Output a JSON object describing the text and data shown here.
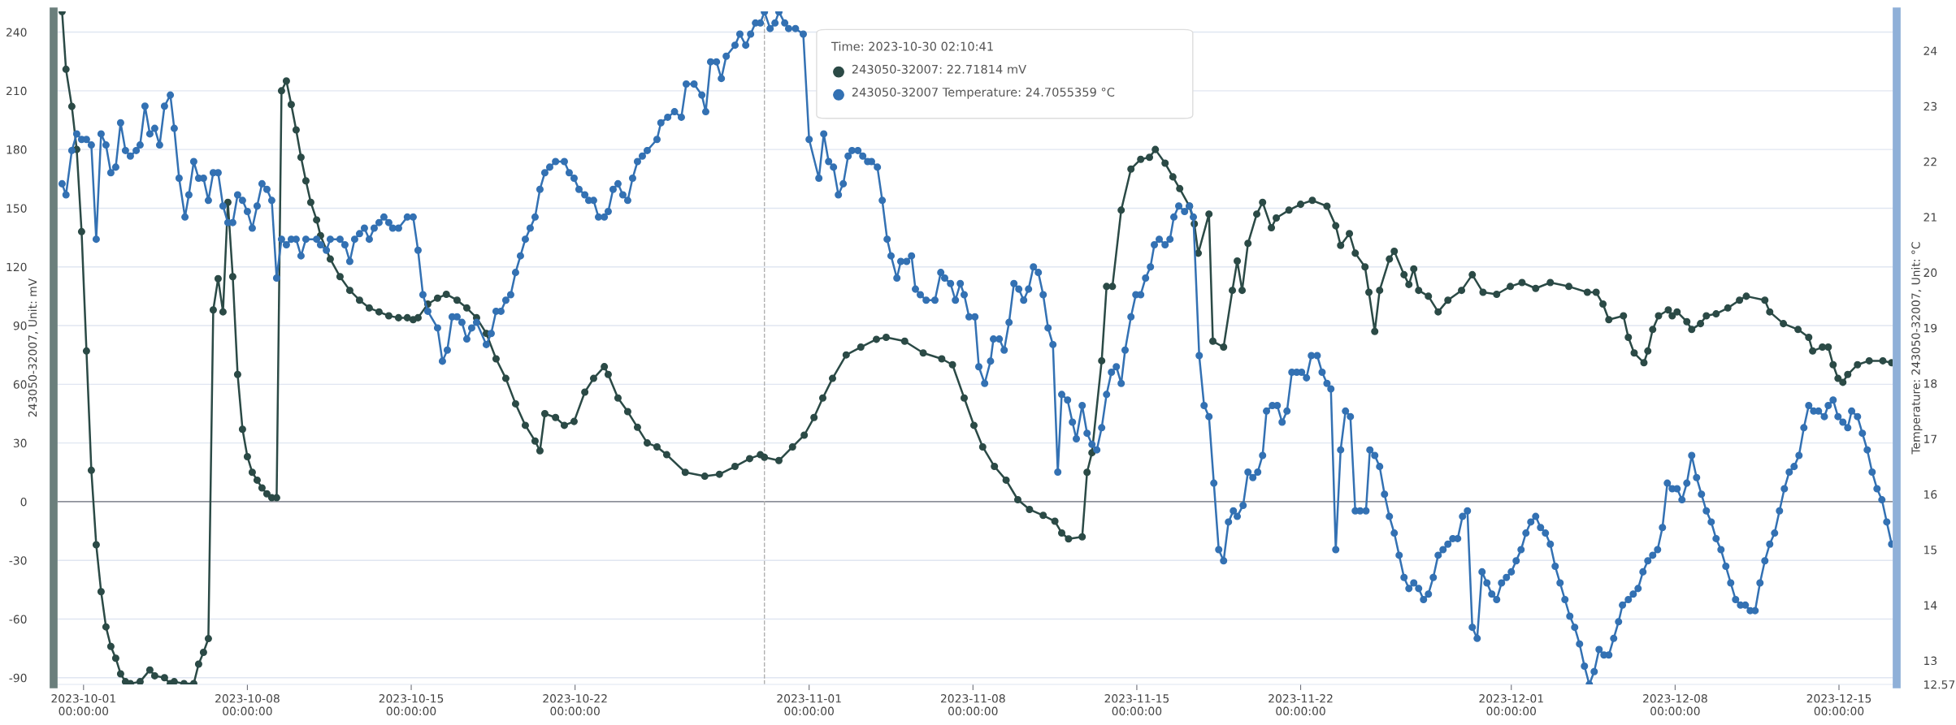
{
  "chart_data": {
    "type": "line",
    "ylabel": "243050-32007, Unit: mV",
    "y2label": "Temperature: 243050-32007, Unit: °C",
    "annotations": [
      "Time: 2023-10-30 02:10:41",
      "243050-32007: 22.71814 mV",
      "243050-32007 Temperature: 24.7055359 °C"
    ],
    "xlim": [
      "2023-09-29T21:30",
      "2023-12-17T07:00"
    ],
    "xticks": [
      {
        "value": "2023-10-01",
        "label": "2023-10-01\n00:00:00"
      },
      {
        "value": "2023-10-08",
        "label": "2023-10-08\n00:00:00"
      },
      {
        "value": "2023-10-15",
        "label": "2023-10-15\n00:00:00"
      },
      {
        "value": "2023-10-22",
        "label": "2023-10-22\n00:00:00"
      },
      {
        "value": "2023-11-01",
        "label": "2023-11-01\n00:00:00"
      },
      {
        "value": "2023-11-08",
        "label": "2023-11-08\n00:00:00"
      },
      {
        "value": "2023-11-15",
        "label": "2023-11-15\n00:00:00"
      },
      {
        "value": "2023-11-22",
        "label": "2023-11-22\n00:00:00"
      },
      {
        "value": "2023-12-01",
        "label": "2023-12-01\n00:00:00"
      },
      {
        "value": "2023-12-08",
        "label": "2023-12-08\n00:00:00"
      },
      {
        "value": "2023-12-15",
        "label": "2023-12-15\n00:00:00"
      }
    ],
    "ylim": [
      -93.4,
      250.6
    ],
    "yticks": [
      -90,
      -60,
      -30,
      0,
      30,
      60,
      90,
      120,
      150,
      180,
      210,
      240
    ],
    "y2lim": [
      12.57,
      24.71
    ],
    "y2ticks": [
      {
        "value": 12.57,
        "label": "12.57"
      },
      13,
      14,
      15,
      16,
      17,
      18,
      19,
      20,
      21,
      22,
      23,
      24
    ],
    "grid": "y",
    "marker": "circle",
    "line_style": "solid",
    "ref_lines": [
      {
        "axis": "y",
        "value": 0,
        "color": "#6e7079",
        "line_style": "solid"
      },
      {
        "axis": "x",
        "value": "2023-10-30T02:10",
        "color": "#b0b0b0",
        "line_style": "dashed"
      }
    ],
    "series": [
      {
        "color": "#2b4a46",
        "axis": "y",
        "x": [
          "2023-09-30T02:00",
          "2023-09-30T06:00",
          "2023-09-30T12:00",
          "2023-09-30T17:00",
          "2023-09-30T22:00",
          "2023-10-01T03:00",
          "2023-10-01T08:00",
          "2023-10-01T13:00",
          "2023-10-01T18:00",
          "2023-10-01T23:00",
          "2023-10-02T04:00",
          "2023-10-02T09:00",
          "2023-10-02T14:00",
          "2023-10-02T19:00",
          "2023-10-03T00:00",
          "2023-10-03T10:00",
          "2023-10-03T20:00",
          "2023-10-04T01:00",
          "2023-10-04T11:00",
          "2023-10-04T17:00",
          "2023-10-04T21:00",
          "2023-10-05T07:00",
          "2023-10-05T17:00",
          "2023-10-05T22:00",
          "2023-10-06T03:00",
          "2023-10-06T08:00",
          "2023-10-06T13:00",
          "2023-10-06T18:00",
          "2023-10-06T23:00",
          "2023-10-07T04:00",
          "2023-10-07T09:00",
          "2023-10-07T14:00",
          "2023-10-07T19:00",
          "2023-10-08T00:00",
          "2023-10-08T05:00",
          "2023-10-08T10:00",
          "2023-10-08T15:00",
          "2023-10-08T20:00",
          "2023-10-09T01:00",
          "2023-10-09T06:00",
          "2023-10-09T11:00",
          "2023-10-09T16:00",
          "2023-10-09T21:00",
          "2023-10-10T02:00",
          "2023-10-10T07:00",
          "2023-10-10T12:00",
          "2023-10-10T17:00",
          "2023-10-10T23:00",
          "2023-10-11T03:00",
          "2023-10-11T13:00",
          "2023-10-11T23:00",
          "2023-10-12T09:00",
          "2023-10-12T19:00",
          "2023-10-13T05:00",
          "2023-10-13T15:00",
          "2023-10-14T01:00",
          "2023-10-14T11:00",
          "2023-10-14T20:00",
          "2023-10-15T02:00",
          "2023-10-15T07:00",
          "2023-10-15T17:00",
          "2023-10-16T03:00",
          "2023-10-16T12:00",
          "2023-10-16T23:00",
          "2023-10-17T09:00",
          "2023-10-17T19:00",
          "2023-10-18T05:00",
          "2023-10-18T15:00",
          "2023-10-19T01:00",
          "2023-10-19T11:00",
          "2023-10-19T21:00",
          "2023-10-20T07:00",
          "2023-10-20T12:00",
          "2023-10-20T17:00",
          "2023-10-21T04:00",
          "2023-10-21T13:00",
          "2023-10-21T23:00",
          "2023-10-22T10:00",
          "2023-10-22T19:00",
          "2023-10-23T06:00",
          "2023-10-23T10:00",
          "2023-10-23T20:00",
          "2023-10-24T06:00",
          "2023-10-24T16:00",
          "2023-10-25T02:00",
          "2023-10-25T12:00",
          "2023-10-25T22:00",
          "2023-10-26T17:00",
          "2023-10-27T13:00",
          "2023-10-28T04:00",
          "2023-10-28T20:00",
          "2023-10-29T11:00",
          "2023-10-29T22:00",
          "2023-10-30T02:10",
          "2023-10-30T17:00",
          "2023-10-31T07:00",
          "2023-10-31T19:00",
          "2023-11-01T05:00",
          "2023-11-01T14:00",
          "2023-11-02T00:00",
          "2023-11-02T14:00",
          "2023-11-03T05:00",
          "2023-11-03T21:00",
          "2023-11-04T07:00",
          "2023-11-05T02:00",
          "2023-11-05T21:00",
          "2023-11-06T16:00",
          "2023-11-07T03:00",
          "2023-11-07T15:00",
          "2023-11-08T01:00",
          "2023-11-08T10:00",
          "2023-11-08T22:00",
          "2023-11-09T10:00",
          "2023-11-09T22:00",
          "2023-11-10T10:00",
          "2023-11-11T00:00",
          "2023-11-11T12:00",
          "2023-11-11T19:00",
          "2023-11-12T02:00",
          "2023-11-12T16:00",
          "2023-11-12T21:00",
          "2023-11-13T02:00",
          "2023-11-13T12:00",
          "2023-11-13T17:00",
          "2023-11-13T23:00",
          "2023-11-14T08:00",
          "2023-11-14T18:00",
          "2023-11-15T04:00",
          "2023-11-15T13:00",
          "2023-11-15T19:00",
          "2023-11-16T05:00",
          "2023-11-16T13:00",
          "2023-11-16T20:00",
          "2023-11-17T06:00",
          "2023-11-17T11:00",
          "2023-11-17T15:00",
          "2023-11-18T02:00",
          "2023-11-18T06:00",
          "2023-11-18T17:00",
          "2023-11-19T02:00",
          "2023-11-19T07:00",
          "2023-11-19T12:00",
          "2023-11-19T18:00",
          "2023-11-20T03:00",
          "2023-11-20T09:00",
          "2023-11-20T18:00",
          "2023-11-20T23:00",
          "2023-11-21T12:00",
          "2023-11-22T00:00",
          "2023-11-22T12:00",
          "2023-11-23T03:00",
          "2023-11-23T12:00",
          "2023-11-23T17:00",
          "2023-11-24T02:00",
          "2023-11-24T08:00",
          "2023-11-24T18:00",
          "2023-11-24T22:00",
          "2023-11-25T04:00",
          "2023-11-25T09:00",
          "2023-11-25T19:00",
          "2023-11-26T00:00",
          "2023-11-26T10:00",
          "2023-11-26T15:00",
          "2023-11-26T20:00",
          "2023-11-27T01:00",
          "2023-11-27T11:00",
          "2023-11-27T21:00",
          "2023-11-28T07:00",
          "2023-11-28T21:00",
          "2023-11-29T08:00",
          "2023-11-29T19:00",
          "2023-11-30T09:00",
          "2023-11-30T23:00",
          "2023-12-01T11:00",
          "2023-12-02T01:00",
          "2023-12-02T16:00",
          "2023-12-03T11:00",
          "2023-12-04T06:00",
          "2023-12-04T15:00",
          "2023-12-04T22:00",
          "2023-12-05T04:00",
          "2023-12-05T19:00",
          "2023-12-06T00:00",
          "2023-12-06T06:00",
          "2023-12-06T16:00",
          "2023-12-06T20:00",
          "2023-12-07T01:00",
          "2023-12-07T07:00",
          "2023-12-07T17:00",
          "2023-12-07T21:00",
          "2023-12-08T02:00",
          "2023-12-08T12:00",
          "2023-12-08T17:00",
          "2023-12-09T02:00",
          "2023-12-09T08:00",
          "2023-12-09T18:00",
          "2023-12-10T06:00",
          "2023-12-10T18:00",
          "2023-12-11T01:00",
          "2023-12-11T20:00",
          "2023-12-12T01:00",
          "2023-12-12T15:00",
          "2023-12-13T06:00",
          "2023-12-13T17:00",
          "2023-12-13T21:00",
          "2023-12-14T07:00",
          "2023-12-14T13:00",
          "2023-12-14T18:00",
          "2023-12-14T23:00",
          "2023-12-15T04:00",
          "2023-12-15T09:00",
          "2023-12-15T19:00",
          "2023-12-16T07:00",
          "2023-12-16T21:00",
          "2023-12-17T06:00"
        ],
        "values": [
          250.5,
          221,
          202,
          180,
          138,
          77,
          16,
          -22,
          -46,
          -64,
          -74,
          -80,
          -88,
          -92,
          -93,
          -92,
          -86,
          -89,
          -90,
          -93,
          -92,
          -93,
          -93,
          -83,
          -77,
          -70,
          98,
          114,
          97,
          153,
          115,
          65,
          37,
          23,
          15,
          11,
          7,
          4,
          2,
          2,
          210,
          215,
          203,
          190,
          176,
          164,
          153,
          144,
          136,
          124,
          115,
          108,
          103,
          99,
          97,
          95,
          94,
          94,
          93,
          94,
          101,
          104,
          106,
          103,
          99,
          94,
          86,
          73,
          63,
          50,
          39,
          31,
          26,
          45,
          43,
          39,
          41,
          56,
          63,
          69,
          65,
          53,
          46,
          38,
          30,
          28,
          24,
          15,
          13,
          14,
          18,
          22,
          24,
          22.7,
          21,
          28,
          34,
          43,
          53,
          63,
          75,
          79,
          83,
          84,
          82,
          76,
          73,
          70,
          53,
          39,
          28,
          18,
          11,
          1,
          -4,
          -7,
          -10,
          -16,
          -19,
          -18,
          15,
          25,
          72,
          110,
          110,
          149,
          170,
          175,
          176,
          180,
          173,
          166,
          160,
          151,
          142,
          127,
          147,
          82,
          79,
          108,
          123,
          108,
          132,
          147,
          153,
          140,
          145,
          149,
          152,
          154,
          151,
          141,
          131,
          137,
          127,
          120,
          107,
          87,
          108,
          124,
          128,
          116,
          111,
          119,
          108,
          105,
          97,
          103,
          108,
          116,
          107,
          106,
          110,
          112,
          109,
          112,
          110,
          107,
          107,
          101,
          93,
          95,
          84,
          76,
          71,
          77,
          88,
          95,
          98,
          95,
          97,
          92,
          88,
          91,
          95,
          96,
          99,
          103,
          105,
          103,
          97,
          91,
          88,
          84,
          77,
          79,
          79,
          70,
          63,
          61,
          65,
          70,
          72,
          72,
          71
        ]
      },
      {
        "color": "#3371b3",
        "axis": "y2",
        "x": [
          "2023-09-30T02:00",
          "2023-09-30T06:00",
          "2023-09-30T12:00",
          "2023-09-30T17:00",
          "2023-09-30T22:00",
          "2023-10-01T03:00",
          "2023-10-01T08:00",
          "2023-10-01T13:00",
          "2023-10-01T18:00",
          "2023-10-01T23:00",
          "2023-10-02T04:00",
          "2023-10-02T09:00",
          "2023-10-02T14:00",
          "2023-10-02T19:00",
          "2023-10-03T00:00",
          "2023-10-03T06:00",
          "2023-10-03T10:00",
          "2023-10-03T15:00",
          "2023-10-03T20:00",
          "2023-10-04T01:00",
          "2023-10-04T06:00",
          "2023-10-04T11:00",
          "2023-10-04T17:00",
          "2023-10-04T21:00",
          "2023-10-05T02:00",
          "2023-10-05T08:00",
          "2023-10-05T12:00",
          "2023-10-05T17:00",
          "2023-10-05T22:00",
          "2023-10-06T03:00",
          "2023-10-06T08:00",
          "2023-10-06T13:00",
          "2023-10-06T18:00",
          "2023-10-06T23:00",
          "2023-10-07T04:00",
          "2023-10-07T09:00",
          "2023-10-07T14:00",
          "2023-10-07T19:00",
          "2023-10-08T00:00",
          "2023-10-08T05:00",
          "2023-10-08T10:00",
          "2023-10-08T15:00",
          "2023-10-08T20:00",
          "2023-10-09T01:00",
          "2023-10-09T06:00",
          "2023-10-09T11:00",
          "2023-10-09T16:00",
          "2023-10-09T21:00",
          "2023-10-10T02:00",
          "2023-10-10T07:00",
          "2023-10-10T12:00",
          "2023-10-10T23:00",
          "2023-10-11T03:00",
          "2023-10-11T09:00",
          "2023-10-11T13:00",
          "2023-10-11T23:00",
          "2023-10-12T04:00",
          "2023-10-12T09:00",
          "2023-10-12T14:00",
          "2023-10-12T19:00",
          "2023-10-13T00:00",
          "2023-10-13T05:00",
          "2023-10-13T10:00",
          "2023-10-13T15:00",
          "2023-10-13T20:00",
          "2023-10-14T01:00",
          "2023-10-14T05:00",
          "2023-10-14T11:00",
          "2023-10-14T20:00",
          "2023-10-15T02:00",
          "2023-10-15T07:00",
          "2023-10-15T12:00",
          "2023-10-15T17:00",
          "2023-10-16T03:00",
          "2023-10-16T08:00",
          "2023-10-16T13:00",
          "2023-10-16T18:00",
          "2023-10-16T23:00",
          "2023-10-17T04:00",
          "2023-10-17T09:00",
          "2023-10-17T14:00",
          "2023-10-17T19:00",
          "2023-10-18T05:00",
          "2023-10-18T10:00",
          "2023-10-18T15:00",
          "2023-10-18T20:00",
          "2023-10-19T01:00",
          "2023-10-19T06:00",
          "2023-10-19T11:00",
          "2023-10-19T16:00",
          "2023-10-19T21:00",
          "2023-10-20T02:00",
          "2023-10-20T07:00",
          "2023-10-20T12:00",
          "2023-10-20T17:00",
          "2023-10-20T22:00",
          "2023-10-21T04:00",
          "2023-10-21T13:00",
          "2023-10-21T18:00",
          "2023-10-21T23:00",
          "2023-10-22T04:00",
          "2023-10-22T10:00",
          "2023-10-22T14:00",
          "2023-10-22T19:00",
          "2023-10-23T00:00",
          "2023-10-23T06:00",
          "2023-10-23T10:00",
          "2023-10-23T15:00",
          "2023-10-23T20:00",
          "2023-10-24T01:00",
          "2023-10-24T06:00",
          "2023-10-24T11:00",
          "2023-10-24T16:00",
          "2023-10-24T21:00",
          "2023-10-25T02:00",
          "2023-10-25T12:00",
          "2023-10-25T16:00",
          "2023-10-25T23:00",
          "2023-10-26T06:00",
          "2023-10-26T13:00",
          "2023-10-26T18:00",
          "2023-10-27T02:00",
          "2023-10-27T10:00",
          "2023-10-27T14:00",
          "2023-10-27T19:00",
          "2023-10-28T01:00",
          "2023-10-28T06:00",
          "2023-10-28T11:00",
          "2023-10-28T20:00",
          "2023-10-29T01:00",
          "2023-10-29T07:00",
          "2023-10-29T12:00",
          "2023-10-29T17:00",
          "2023-10-29T22:00",
          "2023-10-30T02:10",
          "2023-10-30T08:00",
          "2023-10-30T13:00",
          "2023-10-30T17:00",
          "2023-10-30T23:00",
          "2023-10-31T03:00",
          "2023-10-31T10:00",
          "2023-10-31T18:00",
          "2023-11-01T00:00",
          "2023-11-01T10:00",
          "2023-11-01T15:00",
          "2023-11-01T20:00",
          "2023-11-02T01:00",
          "2023-11-02T06:00",
          "2023-11-02T11:00",
          "2023-11-02T16:00",
          "2023-11-02T20:00",
          "2023-11-03T02:00",
          "2023-11-03T07:00",
          "2023-11-03T12:00",
          "2023-11-03T16:00",
          "2023-11-03T22:00",
          "2023-11-04T03:00",
          "2023-11-04T08:00",
          "2023-11-04T12:00",
          "2023-11-04T18:00",
          "2023-11-04T22:00",
          "2023-11-05T04:00",
          "2023-11-05T09:00",
          "2023-11-05T13:00",
          "2023-11-05T18:00",
          "2023-11-06T00:00",
          "2023-11-06T09:00",
          "2023-11-06T15:00",
          "2023-11-06T19:00",
          "2023-11-07T01:00",
          "2023-11-07T06:00",
          "2023-11-07T11:00",
          "2023-11-07T15:00",
          "2023-11-07T20:00",
          "2023-11-08T02:00",
          "2023-11-08T06:00",
          "2023-11-08T12:00",
          "2023-11-08T18:00",
          "2023-11-08T21:00",
          "2023-11-09T03:00",
          "2023-11-09T08:00",
          "2023-11-09T13:00",
          "2023-11-09T18:00",
          "2023-11-09T23:00",
          "2023-11-10T04:00",
          "2023-11-10T09:00",
          "2023-11-10T14:00",
          "2023-11-10T19:00",
          "2023-11-11T00:00",
          "2023-11-11T05:00",
          "2023-11-11T10:00",
          "2023-11-11T15:00",
          "2023-11-11T19:00",
          "2023-11-12T01:00",
          "2023-11-12T06:00",
          "2023-11-12T10:00",
          "2023-11-12T16:00",
          "2023-11-12T21:00",
          "2023-11-13T02:00",
          "2023-11-13T07:00",
          "2023-11-13T12:00",
          "2023-11-13T17:00",
          "2023-11-13T22:00",
          "2023-11-14T03:00",
          "2023-11-14T08:00",
          "2023-11-14T12:00",
          "2023-11-14T18:00",
          "2023-11-14T23:00",
          "2023-11-15T04:00",
          "2023-11-15T09:00",
          "2023-11-15T14:00",
          "2023-11-15T18:00",
          "2023-11-15T23:00",
          "2023-11-16T05:00",
          "2023-11-16T10:00",
          "2023-11-16T14:00",
          "2023-11-16T19:00",
          "2023-11-17T01:00",
          "2023-11-17T06:00",
          "2023-11-17T10:00",
          "2023-11-17T16:00",
          "2023-11-17T21:00",
          "2023-11-18T02:00",
          "2023-11-18T07:00",
          "2023-11-18T12:00",
          "2023-11-18T17:00",
          "2023-11-18T22:00",
          "2023-11-19T03:00",
          "2023-11-19T07:00",
          "2023-11-19T13:00",
          "2023-11-19T18:00",
          "2023-11-19T23:00",
          "2023-11-20T04:00",
          "2023-11-20T09:00",
          "2023-11-20T13:00",
          "2023-11-20T19:00",
          "2023-11-21T00:00",
          "2023-11-21T05:00",
          "2023-11-21T10:00",
          "2023-11-21T15:00",
          "2023-11-21T20:00",
          "2023-11-22T01:00",
          "2023-11-22T06:00",
          "2023-11-22T11:00",
          "2023-11-22T17:00",
          "2023-11-22T22:00",
          "2023-11-23T03:00",
          "2023-11-23T07:00",
          "2023-11-23T12:00",
          "2023-11-23T17:00",
          "2023-11-23T22:00",
          "2023-11-24T03:00",
          "2023-11-24T08:00",
          "2023-11-24T13:00",
          "2023-11-24T19:00",
          "2023-11-24T23:00",
          "2023-11-25T04:00",
          "2023-11-25T09:00",
          "2023-11-25T14:00",
          "2023-11-25T19:00",
          "2023-11-26T00:00",
          "2023-11-26T05:00",
          "2023-11-26T10:00",
          "2023-11-26T15:00",
          "2023-11-26T20:00",
          "2023-11-27T01:00",
          "2023-11-27T06:00",
          "2023-11-27T11:00",
          "2023-11-27T16:00",
          "2023-11-27T21:00",
          "2023-11-28T02:00",
          "2023-11-28T07:00",
          "2023-11-28T12:00",
          "2023-11-28T17:00",
          "2023-11-28T22:00",
          "2023-11-29T03:00",
          "2023-11-29T08:00",
          "2023-11-29T13:00",
          "2023-11-29T18:00",
          "2023-11-29T23:00",
          "2023-11-30T04:00",
          "2023-11-30T09:00",
          "2023-11-30T14:00",
          "2023-11-30T19:00",
          "2023-12-01T00:00",
          "2023-12-01T05:00",
          "2023-12-01T10:00",
          "2023-12-01T15:00",
          "2023-12-01T20:00",
          "2023-12-02T01:00",
          "2023-12-02T06:00",
          "2023-12-02T11:00",
          "2023-12-02T16:00",
          "2023-12-02T21:00",
          "2023-12-03T02:00",
          "2023-12-03T07:00",
          "2023-12-03T12:00",
          "2023-12-03T17:00",
          "2023-12-03T22:00",
          "2023-12-04T03:00",
          "2023-12-04T08:00",
          "2023-12-04T13:00",
          "2023-12-04T18:00",
          "2023-12-04T23:00",
          "2023-12-05T04:00",
          "2023-12-05T09:00",
          "2023-12-05T14:00",
          "2023-12-05T18:00",
          "2023-12-06T00:00",
          "2023-12-06T05:00",
          "2023-12-06T10:00",
          "2023-12-06T15:00",
          "2023-12-06T20:00",
          "2023-12-07T01:00",
          "2023-12-07T06:00",
          "2023-12-07T11:00",
          "2023-12-07T16:00",
          "2023-12-07T21:00",
          "2023-12-08T02:00",
          "2023-12-08T07:00",
          "2023-12-08T12:00",
          "2023-12-08T17:00",
          "2023-12-08T22:00",
          "2023-12-09T03:00",
          "2023-12-09T08:00",
          "2023-12-09T13:00",
          "2023-12-09T18:00",
          "2023-12-09T23:00",
          "2023-12-10T04:00",
          "2023-12-10T09:00",
          "2023-12-10T14:00",
          "2023-12-10T19:00",
          "2023-12-11T00:00",
          "2023-12-11T05:00",
          "2023-12-11T10:00",
          "2023-12-11T15:00",
          "2023-12-11T20:00",
          "2023-12-12T01:00",
          "2023-12-12T06:00",
          "2023-12-12T11:00",
          "2023-12-12T16:00",
          "2023-12-12T21:00",
          "2023-12-13T02:00",
          "2023-12-13T07:00",
          "2023-12-13T12:00",
          "2023-12-13T17:00",
          "2023-12-13T22:00",
          "2023-12-14T03:00",
          "2023-12-14T09:00",
          "2023-12-14T13:00",
          "2023-12-14T18:00",
          "2023-12-14T23:00",
          "2023-12-15T04:00",
          "2023-12-15T09:00",
          "2023-12-15T13:00",
          "2023-12-15T19:00",
          "2023-12-16T00:00",
          "2023-12-16T05:00",
          "2023-12-16T10:00",
          "2023-12-16T15:00",
          "2023-12-16T20:00",
          "2023-12-17T01:00",
          "2023-12-17T06:00"
        ],
        "values": [
          21.6,
          21.4,
          22.2,
          22.5,
          22.4,
          22.4,
          22.3,
          20.6,
          22.5,
          22.3,
          21.8,
          21.9,
          22.7,
          22.2,
          22.1,
          22.2,
          22.3,
          23.0,
          22.5,
          22.6,
          22.3,
          23.0,
          23.2,
          22.6,
          21.7,
          21.0,
          21.4,
          22.0,
          21.7,
          21.7,
          21.3,
          21.8,
          21.8,
          21.2,
          20.9,
          20.9,
          21.4,
          21.3,
          21.1,
          20.8,
          21.2,
          21.6,
          21.5,
          21.3,
          19.9,
          20.6,
          20.5,
          20.6,
          20.6,
          20.3,
          20.6,
          20.6,
          20.5,
          20.4,
          20.6,
          20.6,
          20.5,
          20.2,
          20.6,
          20.7,
          20.8,
          20.6,
          20.8,
          20.9,
          21.0,
          20.9,
          20.8,
          20.8,
          21.0,
          21.0,
          20.4,
          19.6,
          19.3,
          19.0,
          18.4,
          18.6,
          19.2,
          19.2,
          19.1,
          18.8,
          19.0,
          19.1,
          18.7,
          18.9,
          19.3,
          19.3,
          19.5,
          19.6,
          20.0,
          20.3,
          20.6,
          20.8,
          21.0,
          21.5,
          21.8,
          21.9,
          22.0,
          22.0,
          21.8,
          21.7,
          21.5,
          21.4,
          21.3,
          21.3,
          21.0,
          21.0,
          21.1,
          21.5,
          21.6,
          21.4,
          21.3,
          21.7,
          22.0,
          22.1,
          22.2,
          22.4,
          22.7,
          22.8,
          22.9,
          22.8,
          23.4,
          23.4,
          23.2,
          22.9,
          23.8,
          23.8,
          23.5,
          23.9,
          24.1,
          24.3,
          24.1,
          24.3,
          24.5,
          24.5,
          24.7,
          24.4,
          24.5,
          24.7,
          24.5,
          24.4,
          24.4,
          24.3,
          22.4,
          21.7,
          22.5,
          22.0,
          21.9,
          21.4,
          21.6,
          22.1,
          22.2,
          22.2,
          22.1,
          22.0,
          22.0,
          21.9,
          21.3,
          20.6,
          20.3,
          19.9,
          20.2,
          20.2,
          20.3,
          19.7,
          19.6,
          19.5,
          19.5,
          20.0,
          19.9,
          19.8,
          19.5,
          19.8,
          19.6,
          19.2,
          19.2,
          18.3,
          18.0,
          18.4,
          18.8,
          18.8,
          18.6,
          19.1,
          19.8,
          19.7,
          19.5,
          19.7,
          20.1,
          20.0,
          19.6,
          19.0,
          18.7,
          16.4,
          17.8,
          17.7,
          17.3,
          17.0,
          17.6,
          17.1,
          16.9,
          16.8,
          17.2,
          17.8,
          18.2,
          18.3,
          18.0,
          18.6,
          19.2,
          19.6,
          19.6,
          19.9,
          20.1,
          20.5,
          20.6,
          20.5,
          20.6,
          21.0,
          21.2,
          21.1,
          21.2,
          21.0,
          18.5,
          17.6,
          17.4,
          16.2,
          15.0,
          14.8,
          15.5,
          15.7,
          15.6,
          15.8,
          16.4,
          16.3,
          16.4,
          16.7,
          17.5,
          17.6,
          17.6,
          17.3,
          17.5,
          18.2,
          18.2,
          18.2,
          18.1,
          18.5,
          18.5,
          18.2,
          18.0,
          17.9,
          15.0,
          16.8,
          17.5,
          17.4,
          15.7,
          15.7,
          15.7,
          16.8,
          16.7,
          16.5,
          16.0,
          15.6,
          15.3,
          14.9,
          14.5,
          14.3,
          14.4,
          14.3,
          14.1,
          14.2,
          14.5,
          14.9,
          15.0,
          15.1,
          15.2,
          15.2,
          15.6,
          15.7,
          13.6,
          13.4,
          14.6,
          14.4,
          14.2,
          14.1,
          14.4,
          14.5,
          14.6,
          14.8,
          15.0,
          15.3,
          15.5,
          15.6,
          15.4,
          15.3,
          15.1,
          14.7,
          14.4,
          14.1,
          13.8,
          13.6,
          13.3,
          12.9,
          12.57,
          12.8,
          13.2,
          13.1,
          13.1,
          13.4,
          13.7,
          14.0,
          14.1,
          14.2,
          14.3,
          14.6,
          14.8,
          14.9,
          15.0,
          15.4,
          16.2,
          16.1,
          16.1,
          15.9,
          16.2,
          16.7,
          16.3,
          16.0,
          15.7,
          15.5,
          15.2,
          15.0,
          14.7,
          14.4,
          14.1,
          14.0,
          14.0,
          13.9,
          13.9,
          14.4,
          14.8,
          15.1,
          15.3,
          15.7,
          16.1,
          16.4,
          16.5,
          16.7,
          17.2,
          17.6,
          17.5,
          17.5,
          17.4,
          17.6,
          17.7,
          17.4,
          17.3,
          17.2,
          17.5,
          17.4,
          17.1,
          16.8,
          16.4,
          16.1,
          15.9,
          15.5,
          15.1
        ]
      }
    ]
  }
}
